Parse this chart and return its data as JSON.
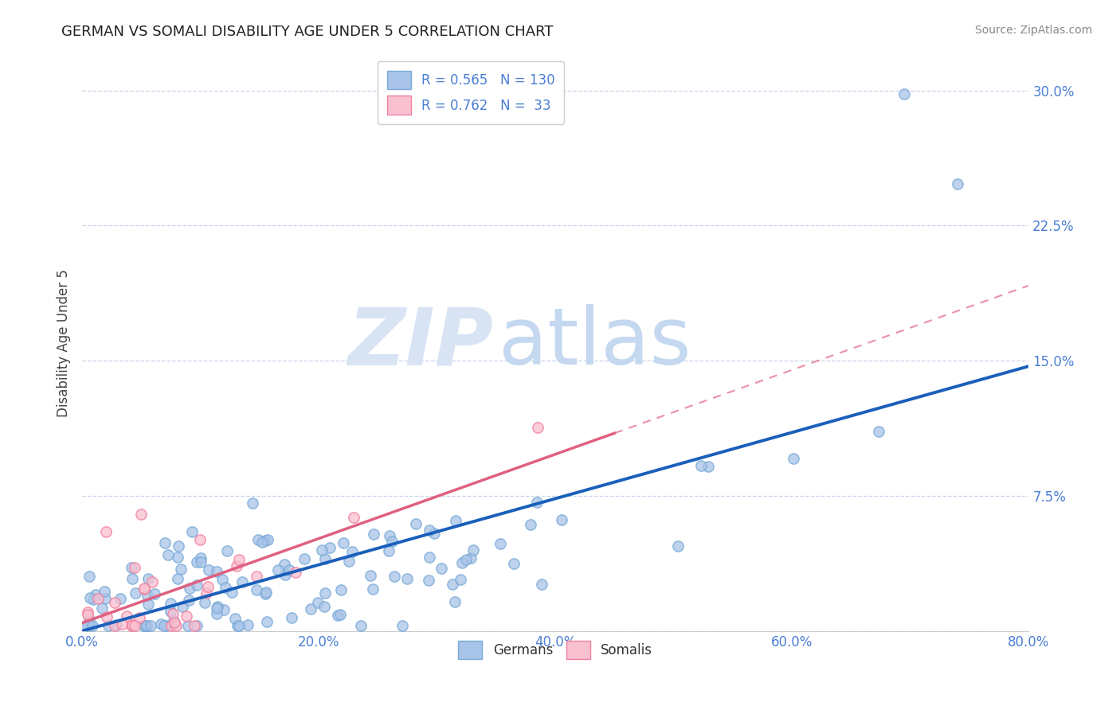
{
  "title": "GERMAN VS SOMALI DISABILITY AGE UNDER 5 CORRELATION CHART",
  "source": "Source: ZipAtlas.com",
  "ylabel": "Disability Age Under 5",
  "german_R": 0.565,
  "german_N": 130,
  "somali_R": 0.762,
  "somali_N": 33,
  "german_dot_color": "#a8c4e8",
  "german_dot_edge": "#7aaad8",
  "somali_dot_color": "#f9c0d0",
  "somali_dot_edge": "#f080a0",
  "german_line_color": "#1a5fba",
  "somali_line_color": "#e06080",
  "bg_color": "#ffffff",
  "grid_color": "#c8d4ea",
  "title_color": "#222222",
  "tick_color": "#4a7fd4",
  "source_color": "#888888",
  "watermark_zip": "ZIP",
  "watermark_atlas": "atlas",
  "watermark_color_zip": "#d8e4f4",
  "watermark_color_atlas": "#c4d8f0",
  "legend_label_german": "Germans",
  "legend_label_somali": "Somalis",
  "xlim": [
    0.0,
    0.8
  ],
  "ylim": [
    0.0,
    0.32
  ],
  "ytick_right": true,
  "xticks": [
    0.0,
    0.2,
    0.4,
    0.6,
    0.8
  ],
  "yticks": [
    0.0,
    0.075,
    0.15,
    0.225,
    0.3
  ]
}
